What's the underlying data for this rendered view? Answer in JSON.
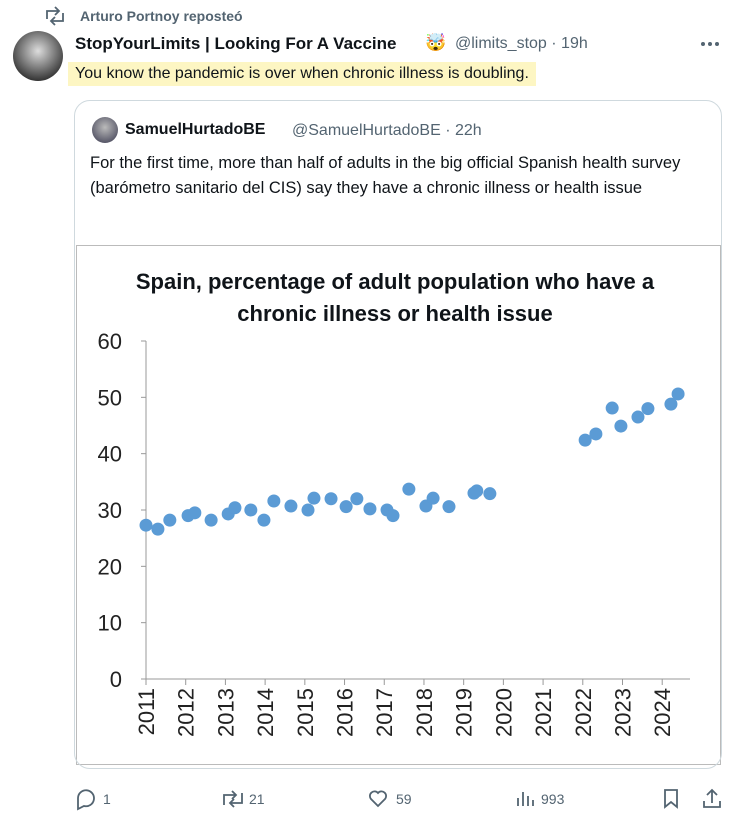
{
  "repost": {
    "text": "Arturo Portnoy reposteó"
  },
  "tweet": {
    "author": "StopYourLimits | Looking For A Vaccine",
    "emoji": "🤯",
    "handle_time": "@limits_stop · 19h",
    "text": "You know the pandemic is over when chronic illness is doubling."
  },
  "quote": {
    "author": "SamuelHurtadoBE",
    "handle_time": "@SamuelHurtadoBE · 22h",
    "text": "For the first time, more than half of adults in the big official Spanish health survey (barómetro sanitario del CIS) say they have a chronic illness or health issue"
  },
  "actions": {
    "replies": 1,
    "reposts": 21,
    "likes": 59,
    "views": 993
  },
  "chart_data": {
    "type": "scatter",
    "title": "Spain, percentage of adult population who have a chronic illness or health issue",
    "color": "#5b9bd5",
    "x": [
      2011.0,
      2011.3,
      2011.6,
      2012.06,
      2012.23,
      2012.64,
      2013.07,
      2013.24,
      2013.64,
      2013.97,
      2014.22,
      2014.65,
      2015.08,
      2015.23,
      2015.66,
      2016.04,
      2016.31,
      2016.64,
      2017.07,
      2017.22,
      2017.62,
      2018.05,
      2018.23,
      2018.63,
      2019.26,
      2019.33,
      2019.66,
      2022.06,
      2022.33,
      2022.74,
      2022.96,
      2023.39,
      2023.64,
      2024.22,
      2024.4
    ],
    "values": [
      27.3,
      26.6,
      28.2,
      29.0,
      29.5,
      28.2,
      29.3,
      30.4,
      30.0,
      28.2,
      31.6,
      30.7,
      30.0,
      32.1,
      32.0,
      30.6,
      32.0,
      30.2,
      30.0,
      29.0,
      33.7,
      30.7,
      32.1,
      30.6,
      33.0,
      33.4,
      32.9,
      42.4,
      43.5,
      48.1,
      44.9,
      46.5,
      48.0,
      48.8,
      50.6
    ],
    "xlim": [
      2011,
      2024.7
    ],
    "xticks": [
      2011,
      2012,
      2013,
      2014,
      2015,
      2016,
      2017,
      2018,
      2019,
      2020,
      2021,
      2022,
      2023,
      2024
    ],
    "ylim": [
      0,
      60
    ],
    "yticks": [
      0,
      10,
      20,
      30,
      40,
      50,
      60
    ]
  }
}
